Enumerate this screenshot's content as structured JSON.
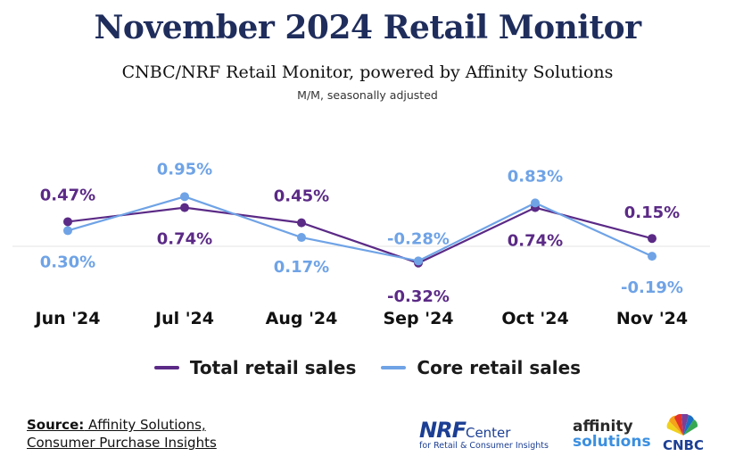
{
  "header": {
    "title": "November 2024 Retail Monitor",
    "subtitle": "CNBC/NRF Retail Monitor, powered by Affinity Solutions",
    "note": "M/M, seasonally adjusted"
  },
  "chart_data": {
    "type": "line",
    "categories": [
      "Jun '24",
      "Jul '24",
      "Aug '24",
      "Sep '24",
      "Oct '24",
      "Nov '24"
    ],
    "series": [
      {
        "name": "Total retail sales",
        "color": "#5b2a86",
        "values": [
          0.47,
          0.74,
          0.45,
          -0.32,
          0.74,
          0.15
        ],
        "labels": [
          "0.47%",
          "0.74%",
          "0.45%",
          "-0.32%",
          "0.74%",
          "0.15%"
        ]
      },
      {
        "name": "Core retail sales",
        "color": "#6fa3e6",
        "values": [
          0.3,
          0.95,
          0.17,
          -0.28,
          0.83,
          -0.19
        ],
        "labels": [
          "0.30%",
          "0.95%",
          "0.17%",
          "-0.28%",
          "0.83%",
          "-0.19%"
        ]
      }
    ],
    "grid": false,
    "legend_position": "bottom"
  },
  "footer": {
    "source_label": "Source:",
    "source_line1": " Affinity Solutions,",
    "source_line2": "Consumer Purchase Insights",
    "logos": {
      "nrf_mark": "NRF",
      "nrf_center": "Center",
      "nrf_sub": "for Retail & Consumer Insights",
      "affinity_line1": "affinity",
      "affinity_line2": "solutions",
      "cnbc": "CNBC"
    }
  }
}
